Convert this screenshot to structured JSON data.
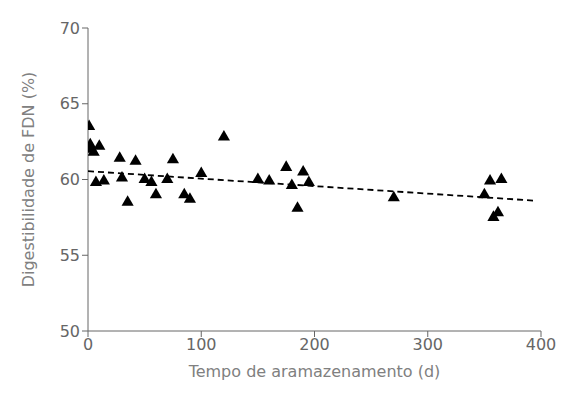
{
  "chart_data": {
    "type": "scatter",
    "xlabel": "Tempo de aramazenamento (d)",
    "ylabel": "Digestibilidade de FDN (%)",
    "xlim": [
      0,
      400
    ],
    "ylim": [
      50,
      70
    ],
    "xticks": [
      0,
      100,
      200,
      300,
      400
    ],
    "yticks": [
      50,
      55,
      60,
      65,
      70
    ],
    "grid": false,
    "series": [
      {
        "type": "scatter",
        "marker": "triangle",
        "color": "#000000",
        "x": [
          1,
          2,
          3,
          5,
          7,
          10,
          14,
          28,
          30,
          35,
          42,
          50,
          56,
          60,
          70,
          75,
          85,
          90,
          100,
          120,
          150,
          160,
          175,
          180,
          185,
          190,
          195,
          270,
          350,
          355,
          358,
          362,
          365
        ],
        "values": [
          63.5,
          62.3,
          62.0,
          61.8,
          59.8,
          62.2,
          59.9,
          61.4,
          60.1,
          58.5,
          61.2,
          60.0,
          59.8,
          59.0,
          60.0,
          61.3,
          59.0,
          58.7,
          60.4,
          62.8,
          60.0,
          59.9,
          60.8,
          59.6,
          58.1,
          60.5,
          59.8,
          58.8,
          59.0,
          59.9,
          57.5,
          57.8,
          60.0
        ]
      },
      {
        "type": "line",
        "line_style": "dashed",
        "color": "#000000",
        "x": [
          0,
          395
        ],
        "values": [
          60.55,
          58.6
        ]
      }
    ]
  }
}
